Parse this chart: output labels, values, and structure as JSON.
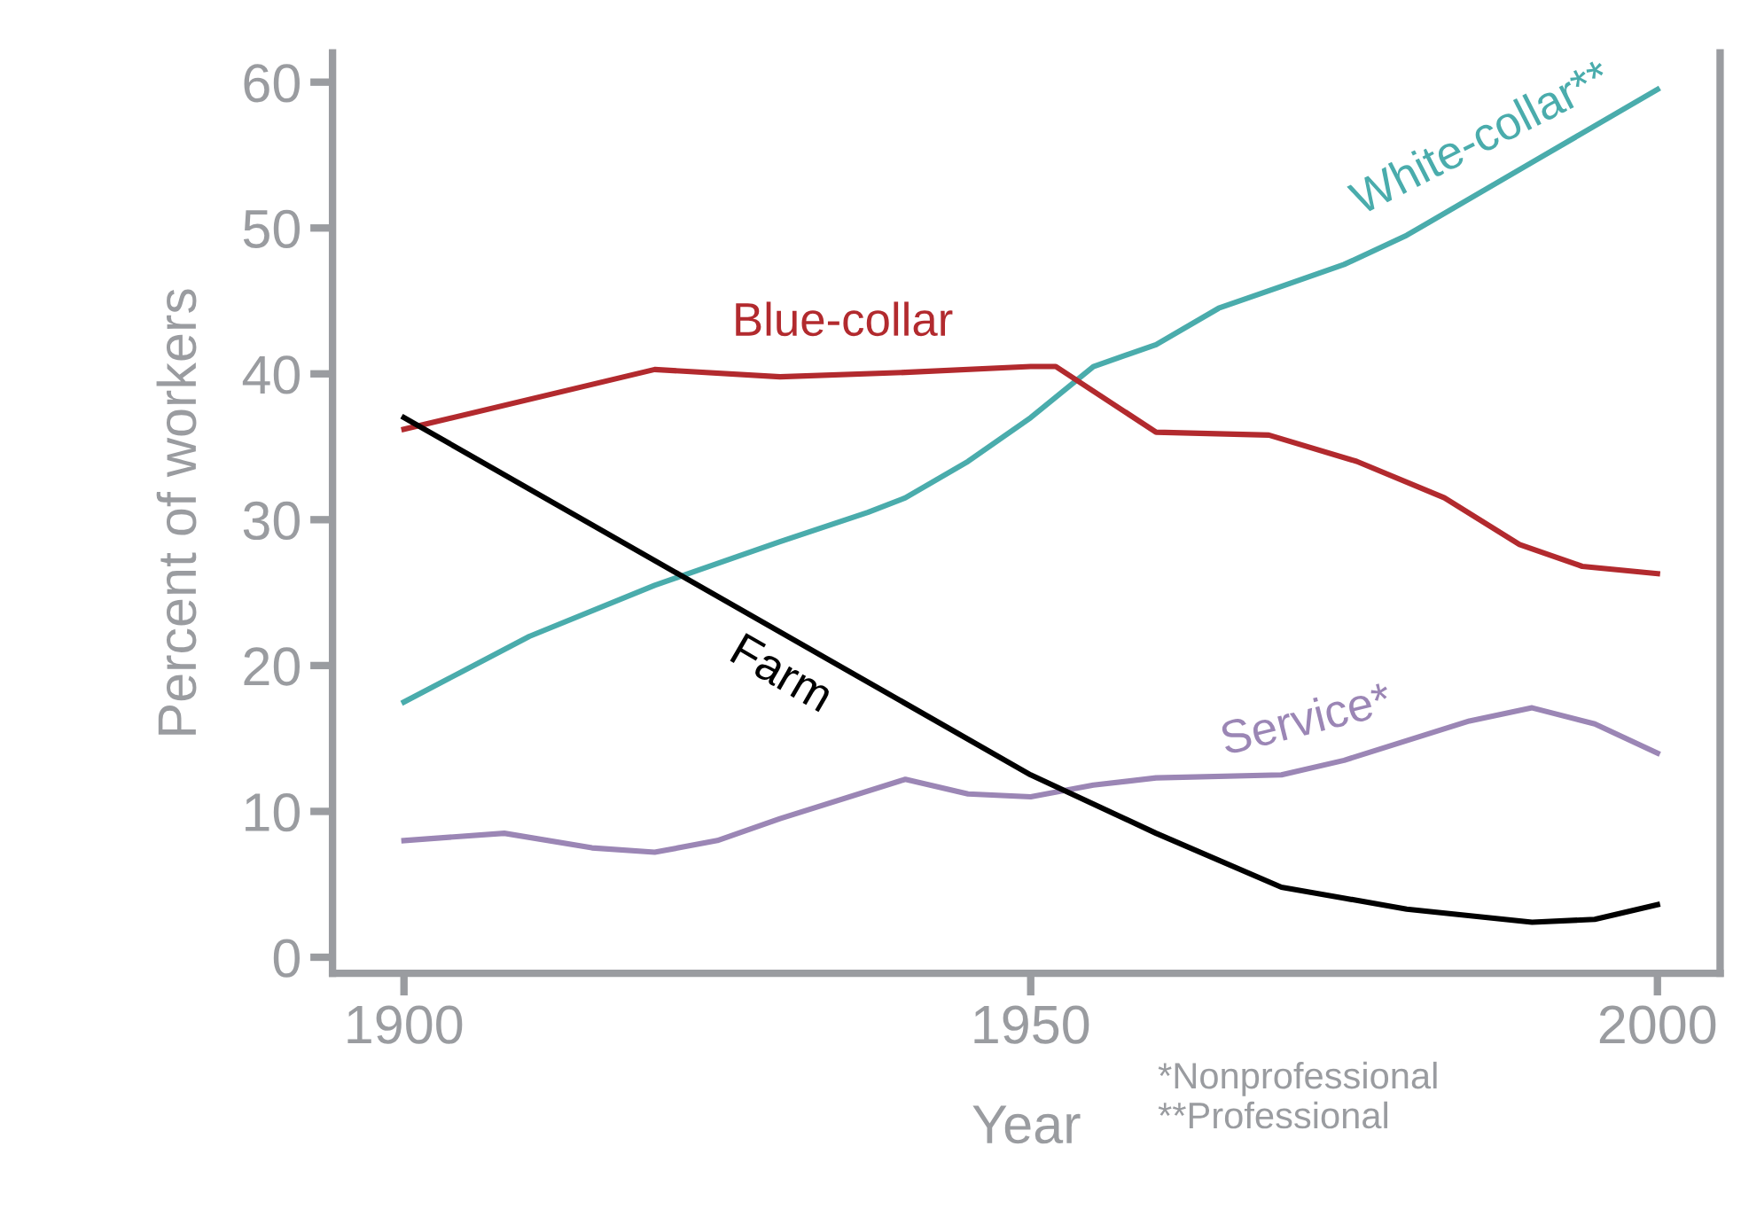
{
  "chart_data": {
    "type": "line",
    "xlabel": "Year",
    "ylabel": "Percent of workers",
    "xlim": [
      1894.3,
      2005
    ],
    "ylim": [
      -1.1,
      62
    ],
    "xticks": [
      1900,
      1950,
      2000
    ],
    "yticks": [
      0,
      10,
      20,
      30,
      40,
      50,
      60
    ],
    "grid": false,
    "legend": false,
    "series": [
      {
        "name": "White-collar**",
        "color": "#4aacac",
        "x": [
          1900,
          1910,
          1920,
          1930,
          1937,
          1940,
          1945,
          1950,
          1955,
          1960,
          1965,
          1970,
          1975,
          1980,
          1990,
          2000
        ],
        "values": [
          17.5,
          22,
          25.5,
          28.5,
          30.5,
          31.5,
          34,
          37,
          40.5,
          42,
          44.5,
          46,
          47.5,
          49.5,
          54.5,
          59.5
        ]
      },
      {
        "name": "Blue-collar",
        "color": "#b22a2e",
        "x": [
          1900,
          1920,
          1930,
          1940,
          1950,
          1952,
          1960,
          1969,
          1976,
          1983,
          1989,
          1994,
          2000
        ],
        "values": [
          36.2,
          40.3,
          39.8,
          40.1,
          40.5,
          40.5,
          36,
          35.8,
          34,
          31.5,
          28.3,
          26.8,
          26.3
        ]
      },
      {
        "name": "Service*",
        "color": "#9b86b5",
        "x": [
          1900,
          1908,
          1915,
          1920,
          1925,
          1930,
          1940,
          1945,
          1950,
          1955,
          1960,
          1970,
          1975,
          1985,
          1990,
          1995,
          2000
        ],
        "values": [
          8,
          8.5,
          7.5,
          7.2,
          8,
          9.5,
          12.2,
          11.2,
          11,
          11.8,
          12.3,
          12.5,
          13.5,
          16.2,
          17.1,
          16,
          14
        ]
      },
      {
        "name": "Farm",
        "color": "#000000",
        "x": [
          1900,
          1950,
          1960,
          1970,
          1980,
          1990,
          1995,
          2000
        ],
        "values": [
          37,
          12.5,
          8.5,
          4.8,
          3.3,
          2.4,
          2.6,
          3.6
        ]
      }
    ],
    "annotations": [
      "*Nonprofessional\n**Professional"
    ]
  }
}
